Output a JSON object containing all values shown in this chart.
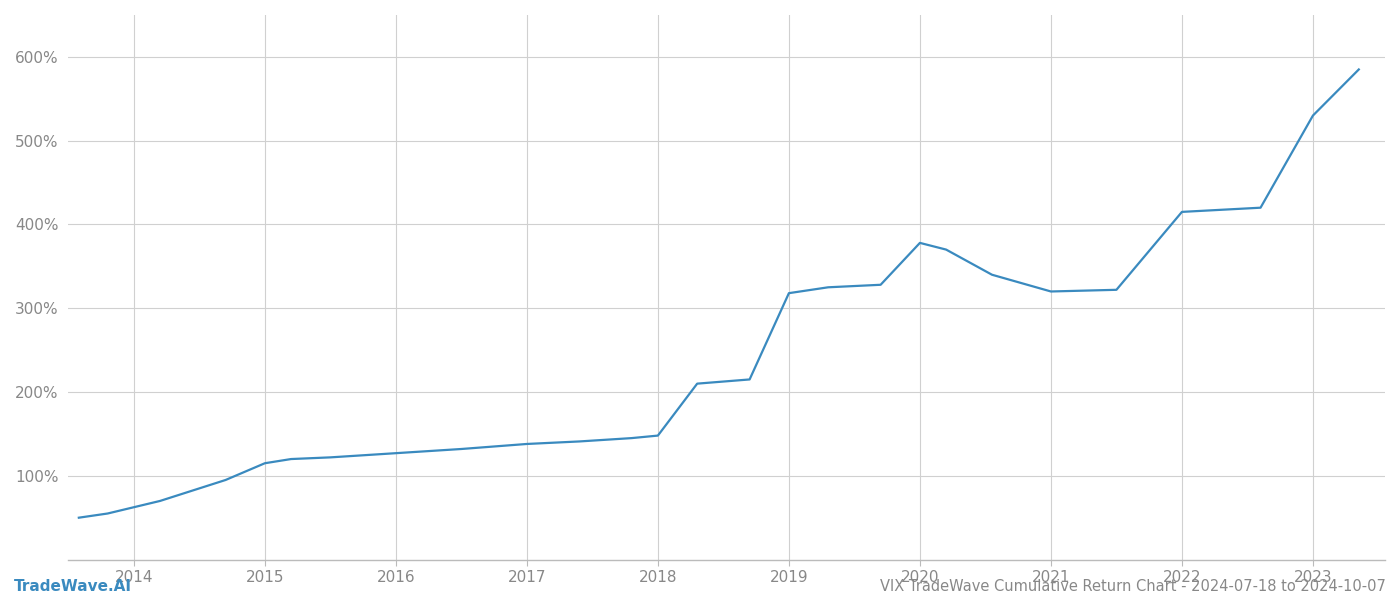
{
  "title": "VIX TradeWave Cumulative Return Chart - 2024-07-18 to 2024-10-07",
  "watermark": "TradeWave.AI",
  "line_color": "#3a8abf",
  "background_color": "#ffffff",
  "grid_color": "#d0d0d0",
  "x_values": [
    2013.58,
    2013.8,
    2014.2,
    2014.7,
    2015.0,
    2015.2,
    2015.5,
    2016.0,
    2016.5,
    2017.0,
    2017.4,
    2017.8,
    2018.0,
    2018.3,
    2018.7,
    2019.0,
    2019.3,
    2019.7,
    2020.0,
    2020.2,
    2020.55,
    2021.0,
    2021.5,
    2022.0,
    2022.6,
    2023.0,
    2023.35
  ],
  "y_values": [
    50,
    55,
    70,
    95,
    115,
    120,
    122,
    127,
    132,
    138,
    141,
    145,
    148,
    210,
    215,
    318,
    325,
    328,
    378,
    370,
    340,
    320,
    322,
    415,
    420,
    530,
    585
  ],
  "xlim": [
    2013.5,
    2023.55
  ],
  "ylim": [
    0,
    650
  ],
  "yticks": [
    100,
    200,
    300,
    400,
    500,
    600
  ],
  "xticks": [
    2014,
    2015,
    2016,
    2017,
    2018,
    2019,
    2020,
    2021,
    2022,
    2023
  ],
  "line_width": 1.6,
  "title_fontsize": 10.5,
  "tick_fontsize": 11,
  "watermark_fontsize": 11
}
